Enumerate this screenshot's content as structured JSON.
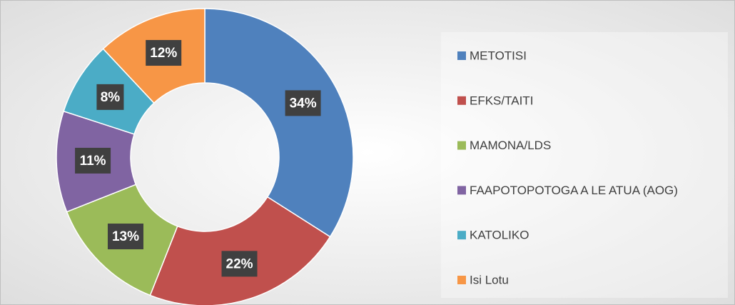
{
  "chart_data": {
    "type": "pie",
    "categories": [
      "METOTISI",
      "EFKS/TAITI",
      "MAMONA/LDS",
      "FAAPOTOPOTOGA A LE ATUA (AOG)",
      "KATOLIKO",
      "Isi Lotu"
    ],
    "values": [
      34,
      22,
      13,
      11,
      8,
      12
    ],
    "value_labels": [
      "34%",
      "22%",
      "13%",
      "11%",
      "8%",
      "12%"
    ],
    "colors": [
      "#4f81bd",
      "#c0504d",
      "#9bbb59",
      "#8064a2",
      "#4bacc6",
      "#f79646"
    ],
    "legend": "right"
  }
}
